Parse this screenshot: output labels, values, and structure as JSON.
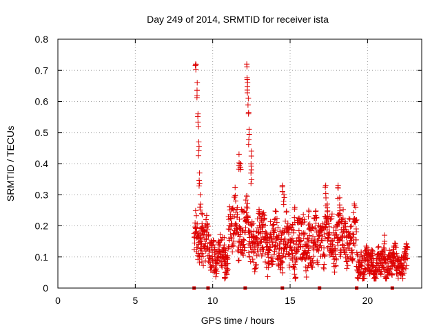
{
  "chart_data": {
    "type": "scatter",
    "title": "Day 249 of 2014, SRMTID for receiver ista",
    "xlabel": "GPS time / hours",
    "ylabel": "SRMTID / TECUs",
    "xlim": [
      0,
      23.5
    ],
    "ylim": [
      0,
      0.8
    ],
    "xticks": [
      0,
      5,
      10,
      15,
      20
    ],
    "yticks": [
      0,
      0.1,
      0.2,
      0.3,
      0.4,
      0.5,
      0.6,
      0.7,
      0.8
    ],
    "grid": true,
    "marker": "+",
    "marker_color": "#dd0000",
    "baseline_markers": {
      "y": 0,
      "x": [
        8.8,
        9.7,
        12.1,
        14.5,
        16.9,
        19.3,
        21.6
      ]
    },
    "segments": [
      {
        "t_start": 8.8,
        "t_end": 9.7,
        "base": 0.15,
        "spread": 0.08,
        "peaks": [
          [
            8.9,
            0.72
          ],
          [
            9.0,
            0.66
          ],
          [
            9.05,
            0.56
          ],
          [
            9.1,
            0.47
          ],
          [
            9.15,
            0.37
          ],
          [
            9.2,
            0.3
          ],
          [
            9.3,
            0.24
          ]
        ]
      },
      {
        "t_start": 9.7,
        "t_end": 11.0,
        "base": 0.11,
        "spread": 0.06,
        "peaks": [
          [
            10.8,
            0.05
          ]
        ]
      },
      {
        "t_start": 11.0,
        "t_end": 12.3,
        "base": 0.2,
        "spread": 0.1,
        "peaks": [
          [
            11.7,
            0.43
          ],
          [
            11.8,
            0.4
          ],
          [
            12.2,
            0.72
          ],
          [
            12.25,
            0.66
          ],
          [
            12.3,
            0.61
          ],
          [
            12.35,
            0.51
          ],
          [
            12.5,
            0.44
          ],
          [
            12.5,
            0.38
          ]
        ]
      },
      {
        "t_start": 12.3,
        "t_end": 14.3,
        "base": 0.15,
        "spread": 0.09,
        "peaks": [
          [
            13.2,
            0.24
          ],
          [
            13.6,
            0.12
          ]
        ]
      },
      {
        "t_start": 14.3,
        "t_end": 16.8,
        "base": 0.14,
        "spread": 0.09,
        "peaks": [
          [
            14.5,
            0.33
          ],
          [
            14.6,
            0.3
          ],
          [
            15.3,
            0.26
          ],
          [
            16.2,
            0.25
          ]
        ]
      },
      {
        "t_start": 16.8,
        "t_end": 19.3,
        "base": 0.16,
        "spread": 0.09,
        "peaks": [
          [
            17.3,
            0.33
          ],
          [
            18.1,
            0.33
          ],
          [
            18.2,
            0.29
          ],
          [
            17.4,
            0.27
          ]
        ]
      },
      {
        "t_start": 19.3,
        "t_end": 22.6,
        "base": 0.08,
        "spread": 0.05,
        "peaks": [
          [
            21.1,
            0.17
          ],
          [
            20.3,
            0.11
          ],
          [
            21.7,
            0.13
          ]
        ]
      }
    ]
  }
}
